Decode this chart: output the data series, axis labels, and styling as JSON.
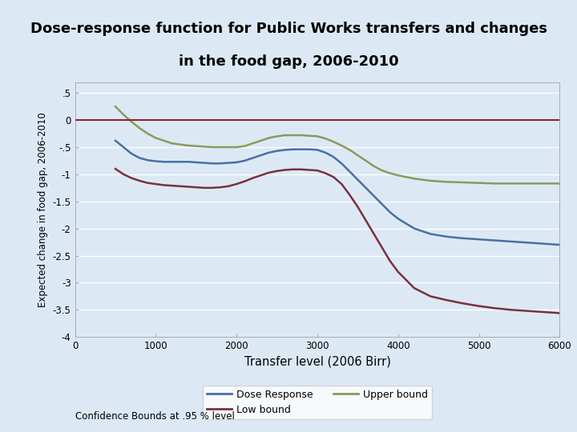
{
  "title_line1": "Dose-response function for Public Works transfers and changes",
  "title_line2": "in the food gap, 2006-2010",
  "xlabel": "Transfer level (2006 Birr)",
  "ylabel": "Expected change in food gap, 2006-2010",
  "xlim": [
    0,
    6000
  ],
  "ylim": [
    -4,
    0.7
  ],
  "yticks": [
    0.5,
    0,
    -0.5,
    -1,
    -1.5,
    -2,
    -2.5,
    -3,
    -3.5,
    -4
  ],
  "ytick_labels": [
    ".5",
    "0",
    "-.5",
    "-1",
    "-1.5",
    "-2",
    "-2.5",
    "-3",
    "-3.5",
    "-4"
  ],
  "xticks": [
    0,
    1000,
    2000,
    3000,
    4000,
    5000,
    6000
  ],
  "plot_bg_color": "#dce9f5",
  "outer_bg_color": "#dce9f5",
  "title_bg_color": "#ffffff",
  "dose_response_color": "#4a6fa5",
  "low_bound_color": "#7b3040",
  "upper_bound_color": "#8a9a5b",
  "horizontal_line_color": "#8b2535",
  "legend_label_dose": "Dose Response",
  "legend_label_low": "Low bound",
  "legend_label_upper": "Upper bound",
  "footnote": "Confidence Bounds at .95 % level",
  "x_data": [
    500,
    600,
    700,
    800,
    900,
    1000,
    1100,
    1200,
    1300,
    1400,
    1500,
    1600,
    1700,
    1800,
    1900,
    2000,
    2100,
    2200,
    2300,
    2400,
    2500,
    2600,
    2700,
    2800,
    2900,
    3000,
    3100,
    3200,
    3300,
    3400,
    3500,
    3600,
    3700,
    3800,
    3900,
    4000,
    4200,
    4400,
    4600,
    4800,
    5000,
    5200,
    5400,
    5600,
    5800,
    6000
  ],
  "dose_response_y": [
    -0.38,
    -0.5,
    -0.62,
    -0.7,
    -0.74,
    -0.76,
    -0.77,
    -0.77,
    -0.77,
    -0.77,
    -0.78,
    -0.79,
    -0.8,
    -0.8,
    -0.79,
    -0.78,
    -0.75,
    -0.7,
    -0.65,
    -0.6,
    -0.57,
    -0.55,
    -0.54,
    -0.54,
    -0.54,
    -0.55,
    -0.6,
    -0.68,
    -0.8,
    -0.95,
    -1.1,
    -1.25,
    -1.4,
    -1.55,
    -1.7,
    -1.82,
    -2.0,
    -2.1,
    -2.15,
    -2.18,
    -2.2,
    -2.22,
    -2.24,
    -2.26,
    -2.28,
    -2.3
  ],
  "low_bound_y": [
    -0.9,
    -1.0,
    -1.07,
    -1.12,
    -1.16,
    -1.18,
    -1.2,
    -1.21,
    -1.22,
    -1.23,
    -1.24,
    -1.25,
    -1.25,
    -1.24,
    -1.22,
    -1.18,
    -1.13,
    -1.07,
    -1.02,
    -0.97,
    -0.94,
    -0.92,
    -0.91,
    -0.91,
    -0.92,
    -0.93,
    -0.98,
    -1.05,
    -1.18,
    -1.38,
    -1.6,
    -1.85,
    -2.1,
    -2.35,
    -2.6,
    -2.8,
    -3.1,
    -3.25,
    -3.32,
    -3.38,
    -3.43,
    -3.47,
    -3.5,
    -3.52,
    -3.54,
    -3.56
  ],
  "upper_bound_y": [
    0.25,
    0.1,
    -0.03,
    -0.15,
    -0.25,
    -0.33,
    -0.38,
    -0.43,
    -0.45,
    -0.47,
    -0.48,
    -0.49,
    -0.5,
    -0.5,
    -0.5,
    -0.5,
    -0.48,
    -0.43,
    -0.38,
    -0.33,
    -0.3,
    -0.28,
    -0.28,
    -0.28,
    -0.29,
    -0.3,
    -0.34,
    -0.4,
    -0.47,
    -0.55,
    -0.65,
    -0.75,
    -0.85,
    -0.93,
    -0.98,
    -1.02,
    -1.08,
    -1.12,
    -1.14,
    -1.15,
    -1.16,
    -1.17,
    -1.17,
    -1.17,
    -1.17,
    -1.17
  ]
}
